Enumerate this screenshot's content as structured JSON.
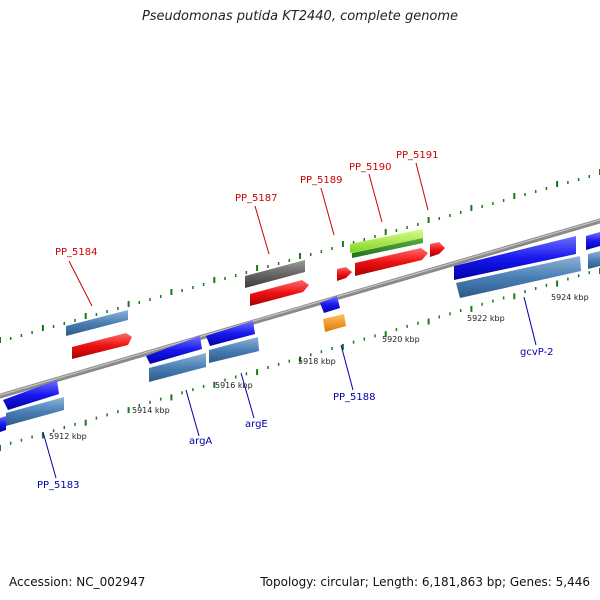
{
  "title": "Pseudomonas putida KT2440, complete genome",
  "footer": {
    "accession": "Accession: NC_002947",
    "topology": "Topology: circular; Length: 6,181,863 bp; Genes: 5,446"
  },
  "colors": {
    "top_label": "#cc0000",
    "bottom_label": "#0000aa",
    "tick": "#1a7a1a",
    "backbone": "#8a8a8a"
  },
  "scale_ticks": [
    "5912 kbp",
    "5914 kbp",
    "5916 kbp",
    "5918 kbp",
    "5920 kbp",
    "5922 kbp",
    "5924 kbp"
  ],
  "top_labels": [
    "PP_5184",
    "PP_5187",
    "PP_5189",
    "PP_5190",
    "PP_5191"
  ],
  "bottom_labels": [
    "PP_5183",
    "argA",
    "argE",
    "PP_5188",
    "gcvP-2"
  ]
}
